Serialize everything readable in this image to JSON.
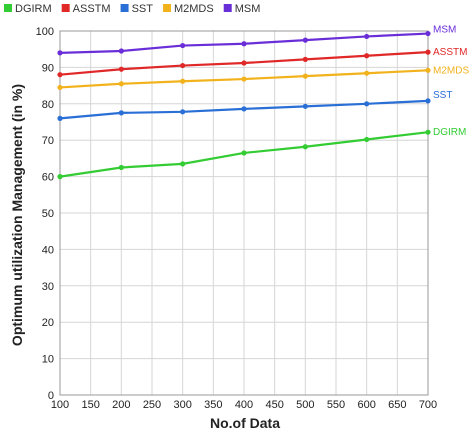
{
  "chart_data": {
    "type": "line",
    "xlabel": "No.of Data",
    "ylabel": "Optimum utilization Management (in %)",
    "xlim": [
      100,
      700
    ],
    "ylim": [
      0,
      100
    ],
    "xticks": [
      100,
      150,
      200,
      250,
      300,
      350,
      400,
      450,
      500,
      550,
      600,
      650,
      700
    ],
    "yticks": [
      0,
      10,
      20,
      30,
      40,
      50,
      60,
      70,
      80,
      90,
      100
    ],
    "grid": true,
    "legend_position": "top-left",
    "x": [
      100,
      200,
      300,
      400,
      500,
      600,
      700
    ],
    "series": [
      {
        "name": "DGIRM",
        "color": "#33cc33",
        "values": [
          60,
          62.5,
          63.5,
          66.5,
          68.2,
          70.2,
          72.2
        ]
      },
      {
        "name": "ASSTM",
        "color": "#e02828",
        "values": [
          88,
          89.5,
          90.5,
          91.2,
          92.2,
          93.2,
          94.2
        ]
      },
      {
        "name": "SST",
        "color": "#2a6fd6",
        "values": [
          76,
          77.5,
          77.8,
          78.6,
          79.3,
          80,
          80.8
        ]
      },
      {
        "name": "M2MDS",
        "color": "#f2b21c",
        "values": [
          84.5,
          85.5,
          86.2,
          86.8,
          87.6,
          88.4,
          89.2
        ]
      },
      {
        "name": "MSM",
        "color": "#6a2ed8",
        "values": [
          94,
          94.5,
          96,
          96.5,
          97.5,
          98.5,
          99.3
        ]
      }
    ],
    "end_labels": [
      "MSM",
      "ASSTM",
      "M2MDS",
      "SST",
      "DGIRM"
    ]
  }
}
